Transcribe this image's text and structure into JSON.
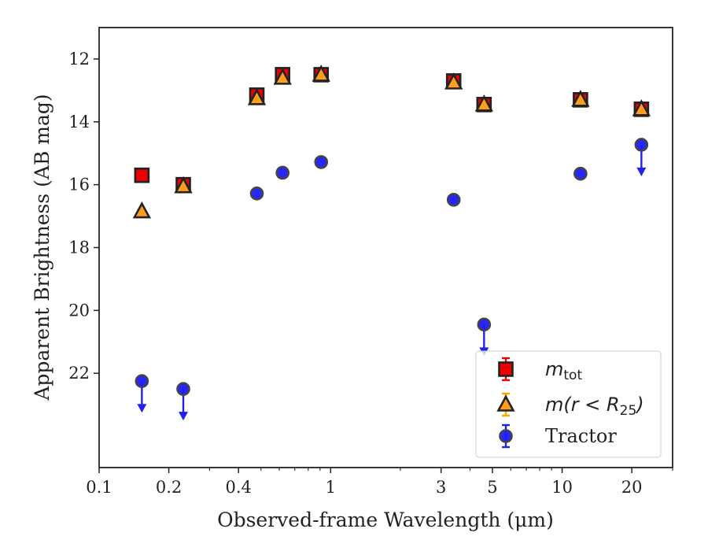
{
  "chart_data": {
    "type": "scatter",
    "xlabel": "Observed-frame Wavelength (μm)",
    "ylabel": "Apparent Brightness (AB mag)",
    "x_scale": "log",
    "y_inverted": true,
    "xlim": [
      0.1,
      30
    ],
    "ylim": [
      25.0,
      11.0
    ],
    "x_ticks": [
      0.1,
      0.2,
      0.4,
      1,
      3,
      5,
      10,
      20
    ],
    "x_tick_labels": [
      "0.1",
      "0.2",
      "0.4",
      "1",
      "3",
      "5",
      "10",
      "20"
    ],
    "y_ticks": [
      12,
      14,
      16,
      18,
      20,
      22
    ],
    "y_tick_labels": [
      "12",
      "14",
      "16",
      "18",
      "20",
      "22"
    ],
    "grid": false,
    "legend_position": "lower right",
    "series": [
      {
        "name": "mtot",
        "legend_main": "m",
        "legend_sub": "tot",
        "marker": "square",
        "color": "#ee0000",
        "edge_color": "#222222",
        "errorbar_color": "#ee0000",
        "points": [
          {
            "x": 0.153,
            "y": 15.7
          },
          {
            "x": 0.231,
            "y": 16.0
          },
          {
            "x": 0.48,
            "y": 13.15
          },
          {
            "x": 0.62,
            "y": 12.5
          },
          {
            "x": 0.91,
            "y": 12.5
          },
          {
            "x": 3.4,
            "y": 12.7
          },
          {
            "x": 4.6,
            "y": 13.45
          },
          {
            "x": 12.0,
            "y": 13.3
          },
          {
            "x": 22.0,
            "y": 13.6
          }
        ]
      },
      {
        "name": "m(r<R25)",
        "legend_text": "m(r < R",
        "legend_sub": "25",
        "legend_close": ")",
        "marker": "triangle",
        "color": "#ff9e1b",
        "edge_color": "#222222",
        "errorbar_color": "#ffa500",
        "points": [
          {
            "x": 0.153,
            "y": 16.85
          },
          {
            "x": 0.231,
            "y": 16.05
          },
          {
            "x": 0.48,
            "y": 13.25
          },
          {
            "x": 0.62,
            "y": 12.6
          },
          {
            "x": 0.91,
            "y": 12.5
          },
          {
            "x": 3.4,
            "y": 12.75
          },
          {
            "x": 4.6,
            "y": 13.45
          },
          {
            "x": 12.0,
            "y": 13.3
          },
          {
            "x": 22.0,
            "y": 13.6
          }
        ]
      },
      {
        "name": "Tractor",
        "marker": "circle",
        "color": "#1a1aff",
        "edge_color": "#444444",
        "errorbar_color": "#2222ee",
        "points": [
          {
            "x": 0.153,
            "y": 22.25,
            "upper_limit": true
          },
          {
            "x": 0.231,
            "y": 22.5,
            "upper_limit": true
          },
          {
            "x": 0.48,
            "y": 16.28
          },
          {
            "x": 0.62,
            "y": 15.62
          },
          {
            "x": 0.91,
            "y": 15.28
          },
          {
            "x": 3.4,
            "y": 16.48
          },
          {
            "x": 4.6,
            "y": 20.45,
            "upper_limit": true
          },
          {
            "x": 12.0,
            "y": 15.65
          },
          {
            "x": 22.0,
            "y": 14.73,
            "upper_limit": true
          }
        ]
      }
    ]
  }
}
